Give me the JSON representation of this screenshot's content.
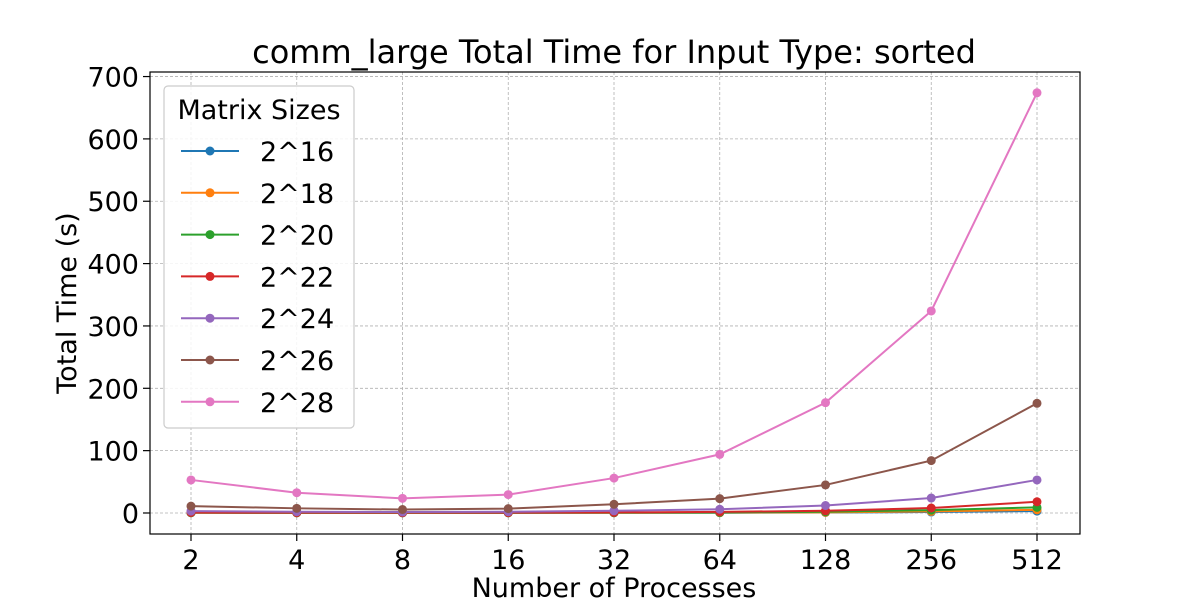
{
  "chart_data": {
    "type": "line",
    "title": "comm_large Total Time for Input Type: sorted",
    "xlabel": "Number of Processes",
    "ylabel": "Total Time (s)",
    "x": [
      "2",
      "4",
      "8",
      "16",
      "32",
      "64",
      "128",
      "256",
      "512"
    ],
    "x_scale": "log2",
    "ylim": [
      -33.7,
      707.3
    ],
    "yticks": [
      0,
      100,
      200,
      300,
      400,
      500,
      600,
      700
    ],
    "grid": true,
    "legend": {
      "title": "Matrix Sizes",
      "placement": "upper-left"
    },
    "series": [
      {
        "name": "2^16",
        "color": "#1f77b4",
        "values": [
          0.3,
          0.2,
          0.2,
          0.2,
          0.3,
          0.4,
          0.8,
          1.5,
          3.0
        ]
      },
      {
        "name": "2^18",
        "color": "#ff7f0e",
        "values": [
          0.4,
          0.3,
          0.3,
          0.3,
          0.4,
          0.5,
          1.0,
          2.5,
          5.0
        ]
      },
      {
        "name": "2^20",
        "color": "#2ca02c",
        "values": [
          0.5,
          0.4,
          0.4,
          0.4,
          0.5,
          0.8,
          2.0,
          4.5,
          9.0
        ]
      },
      {
        "name": "2^22",
        "color": "#d62728",
        "values": [
          0.8,
          0.6,
          0.5,
          0.6,
          0.9,
          1.8,
          3.5,
          8.0,
          18.0
        ]
      },
      {
        "name": "2^24",
        "color": "#9467bd",
        "values": [
          3.0,
          2.0,
          1.5,
          2.0,
          3.5,
          6.0,
          12.0,
          24.0,
          53.0
        ]
      },
      {
        "name": "2^26",
        "color": "#8c564b",
        "values": [
          11.0,
          7.5,
          5.5,
          7.0,
          14.0,
          23.0,
          45.0,
          84.0,
          176.0
        ]
      },
      {
        "name": "2^28",
        "color": "#e377c2",
        "values": [
          53.0,
          32.5,
          23.5,
          29.5,
          56.0,
          94.0,
          177.0,
          324.0,
          674.0
        ]
      }
    ]
  }
}
